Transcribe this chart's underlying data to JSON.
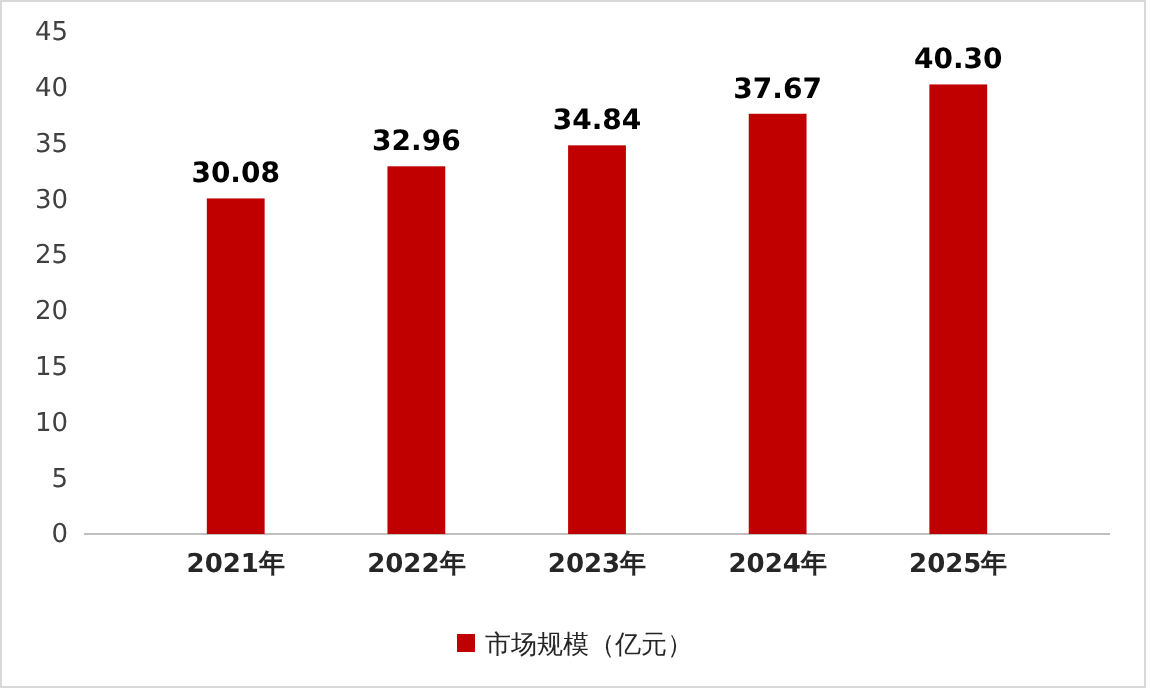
{
  "chart_data": {
    "type": "bar",
    "categories": [
      "2021年",
      "2022年",
      "2023年",
      "2024年",
      "2025年"
    ],
    "series": [
      {
        "name": "市场规模（亿元）",
        "color": "#c00000",
        "values": [
          30.08,
          32.96,
          34.84,
          37.67,
          40.3
        ]
      }
    ],
    "value_labels": [
      "30.08",
      "32.96",
      "34.84",
      "37.67",
      "40.30"
    ],
    "ylim": [
      0,
      45
    ],
    "yticks": [
      0,
      5,
      10,
      15,
      20,
      25,
      30,
      35,
      40,
      45
    ],
    "grid": false,
    "legend": "bottom"
  }
}
